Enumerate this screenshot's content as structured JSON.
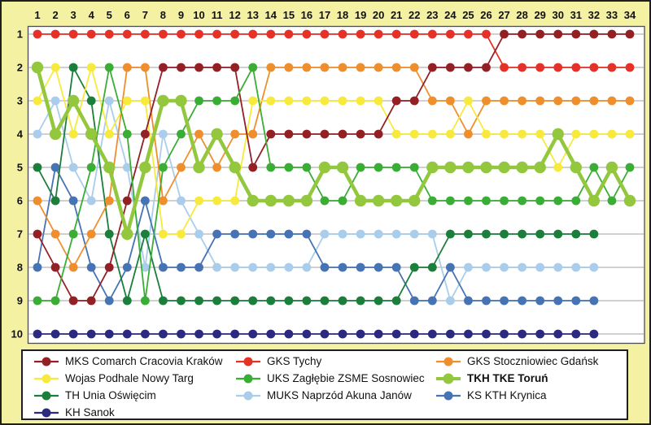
{
  "theme": {
    "background_color": "#f5f1a3",
    "plot_background": "#ffffff",
    "grid_color": "#c9c9c9",
    "plot_border_color": "#4d4d4d",
    "text_color": "#111111"
  },
  "chart_data": {
    "type": "line",
    "title": "",
    "xlabel": "",
    "ylabel": "",
    "x": [
      1,
      2,
      3,
      4,
      5,
      6,
      7,
      8,
      9,
      10,
      11,
      12,
      13,
      14,
      15,
      16,
      17,
      18,
      19,
      20,
      21,
      22,
      23,
      24,
      25,
      26,
      27,
      28,
      29,
      30,
      31,
      32,
      33,
      34
    ],
    "y_ticks": [
      1,
      2,
      3,
      4,
      5,
      6,
      7,
      8,
      9,
      10
    ],
    "ylim": [
      1,
      10
    ],
    "y_inverted": true,
    "grid": true,
    "legend_position": "bottom",
    "series": [
      {
        "name": "MUKS Naprzód Akuna Janów",
        "slug": "muks-naprzod-akuna-janow",
        "color": "#a9cdeb",
        "bold": false,
        "positions": [
          4,
          3,
          5,
          6,
          3,
          5,
          8,
          4,
          6,
          7,
          8,
          8,
          8,
          8,
          8,
          8,
          7,
          7,
          7,
          7,
          7,
          7,
          7,
          9,
          8,
          8,
          8,
          8,
          8,
          8,
          8,
          8,
          null,
          null
        ]
      },
      {
        "name": "KS KTH Krynica",
        "slug": "ks-kth-krynica",
        "color": "#4673b4",
        "bold": false,
        "positions": [
          8,
          5,
          6,
          8,
          9,
          8,
          6,
          8,
          8,
          8,
          7,
          7,
          7,
          7,
          7,
          7,
          8,
          8,
          8,
          8,
          8,
          9,
          9,
          8,
          9,
          9,
          9,
          9,
          9,
          9,
          9,
          9,
          null,
          null
        ]
      },
      {
        "name": "KH Sanok",
        "slug": "kh-sanok",
        "color": "#2c2a80",
        "bold": false,
        "positions": [
          10,
          10,
          10,
          10,
          10,
          10,
          10,
          10,
          10,
          10,
          10,
          10,
          10,
          10,
          10,
          10,
          10,
          10,
          10,
          10,
          10,
          10,
          10,
          10,
          10,
          10,
          10,
          10,
          10,
          10,
          10,
          10,
          null,
          null
        ]
      },
      {
        "name": "TH Unia Oświęcim",
        "slug": "th-unia-oswiecim",
        "color": "#1b7e3b",
        "bold": false,
        "positions": [
          5,
          6,
          2,
          3,
          7,
          9,
          7,
          9,
          9,
          9,
          9,
          9,
          9,
          9,
          9,
          9,
          9,
          9,
          9,
          9,
          9,
          8,
          8,
          7,
          7,
          7,
          7,
          7,
          7,
          7,
          7,
          7,
          null,
          null
        ]
      },
      {
        "name": "GKS Stoczniowiec Gdańsk",
        "slug": "gks-stoczniowiec-gdansk",
        "color": "#ef8e2d",
        "bold": false,
        "positions": [
          6,
          7,
          8,
          7,
          6,
          2,
          2,
          6,
          5,
          4,
          5,
          4,
          4,
          2,
          2,
          2,
          2,
          2,
          2,
          2,
          2,
          2,
          3,
          3,
          4,
          3,
          3,
          3,
          3,
          3,
          3,
          3,
          3,
          3
        ]
      },
      {
        "name": "Wojas Podhale Nowy Targ",
        "slug": "wojas-podhale-nowy-targ",
        "color": "#f7ea3c",
        "bold": false,
        "positions": [
          3,
          2,
          4,
          2,
          4,
          3,
          3,
          7,
          7,
          6,
          6,
          6,
          3,
          3,
          3,
          3,
          3,
          3,
          3,
          3,
          4,
          4,
          4,
          4,
          3,
          4,
          4,
          4,
          4,
          5,
          4,
          4,
          4,
          4
        ]
      },
      {
        "name": "GKS Tychy",
        "slug": "gks-tychy",
        "color": "#e63128",
        "bold": false,
        "positions": [
          1,
          1,
          1,
          1,
          1,
          1,
          1,
          1,
          1,
          1,
          1,
          1,
          1,
          1,
          1,
          1,
          1,
          1,
          1,
          1,
          1,
          1,
          1,
          1,
          1,
          1,
          2,
          2,
          2,
          2,
          2,
          2,
          2,
          2
        ]
      },
      {
        "name": "MKS Comarch Cracovia Kraków",
        "slug": "mks-comarch-cracovia-krakow",
        "color": "#932025",
        "bold": false,
        "positions": [
          7,
          8,
          9,
          9,
          8,
          6,
          4,
          2,
          2,
          2,
          2,
          2,
          5,
          4,
          4,
          4,
          4,
          4,
          4,
          4,
          3,
          3,
          2,
          2,
          2,
          2,
          1,
          1,
          1,
          1,
          1,
          1,
          1,
          1
        ]
      },
      {
        "name": "UKS Zagłębie ZSME Sosnowiec",
        "slug": "uks-zaglebie-zsme-sosnowiec",
        "color": "#3aad35",
        "bold": false,
        "positions": [
          9,
          9,
          7,
          5,
          2,
          4,
          9,
          5,
          4,
          3,
          3,
          3,
          2,
          5,
          5,
          5,
          6,
          6,
          5,
          5,
          5,
          5,
          6,
          6,
          6,
          6,
          6,
          6,
          6,
          6,
          6,
          5,
          6,
          5
        ]
      },
      {
        "name": "TKH TKE Toruń",
        "slug": "tkh-tke-torun",
        "color": "#92c73e",
        "bold": true,
        "positions": [
          2,
          4,
          3,
          4,
          5,
          7,
          5,
          3,
          3,
          5,
          4,
          5,
          6,
          6,
          6,
          6,
          5,
          5,
          6,
          6,
          6,
          6,
          5,
          5,
          5,
          5,
          5,
          5,
          5,
          4,
          5,
          6,
          5,
          6
        ]
      }
    ]
  },
  "legend": {
    "columns": [
      [
        "mks-comarch-cracovia-krakow",
        "wojas-podhale-nowy-targ",
        "th-unia-oswiecim",
        "kh-sanok"
      ],
      [
        "gks-tychy",
        "uks-zaglebie-zsme-sosnowiec",
        "muks-naprzod-akuna-janow"
      ],
      [
        "gks-stoczniowiec-gdansk",
        "tkh-tke-torun",
        "ks-kth-krynica"
      ]
    ]
  }
}
